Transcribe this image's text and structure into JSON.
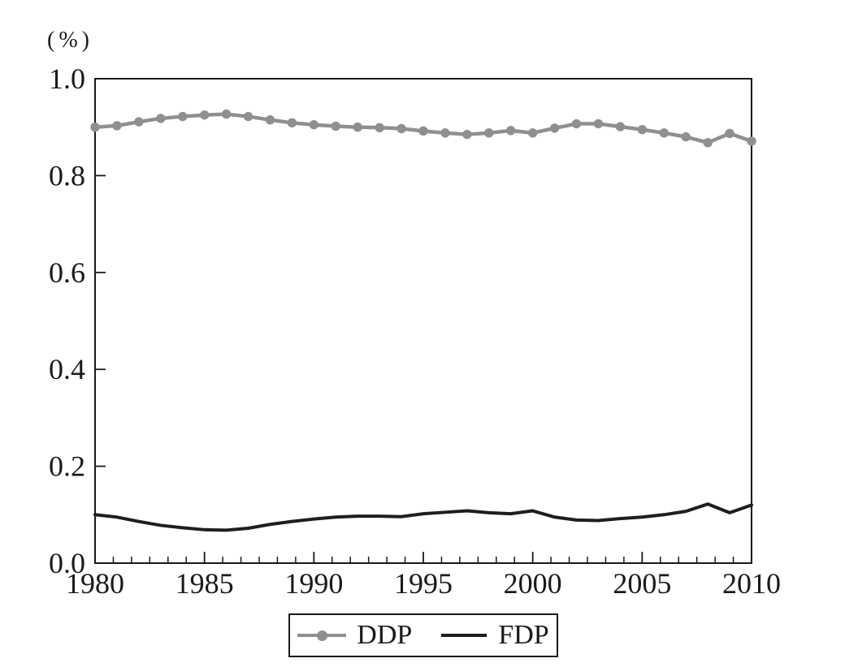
{
  "figure": {
    "unit_label": "(%)"
  },
  "chart_data": {
    "type": "line",
    "title": "",
    "xlabel": "",
    "ylabel": "(%)",
    "x": [
      1980,
      1981,
      1982,
      1983,
      1984,
      1985,
      1986,
      1987,
      1988,
      1989,
      1990,
      1991,
      1992,
      1993,
      1994,
      1995,
      1996,
      1997,
      1998,
      1999,
      2000,
      2001,
      2002,
      2003,
      2004,
      2005,
      2006,
      2007,
      2008,
      2009,
      2010
    ],
    "series": [
      {
        "name": "DDP",
        "color": "#8f8f8f",
        "marker": "circle",
        "values": [
          0.9,
          0.903,
          0.911,
          0.918,
          0.922,
          0.925,
          0.927,
          0.922,
          0.915,
          0.909,
          0.905,
          0.902,
          0.9,
          0.899,
          0.897,
          0.892,
          0.888,
          0.885,
          0.888,
          0.893,
          0.888,
          0.898,
          0.907,
          0.907,
          0.901,
          0.895,
          0.888,
          0.88,
          0.868,
          0.887,
          0.871
        ]
      },
      {
        "name": "FDP",
        "color": "#1e1e1e",
        "marker": "none",
        "values": [
          0.1,
          0.095,
          0.086,
          0.078,
          0.073,
          0.069,
          0.068,
          0.072,
          0.08,
          0.086,
          0.091,
          0.095,
          0.097,
          0.097,
          0.096,
          0.102,
          0.105,
          0.108,
          0.104,
          0.102,
          0.108,
          0.095,
          0.089,
          0.088,
          0.092,
          0.095,
          0.1,
          0.107,
          0.122,
          0.104,
          0.12
        ]
      }
    ],
    "xlim": [
      1980,
      2010
    ],
    "ylim": [
      0.0,
      1.0
    ],
    "y_tick_labels": [
      "0.0",
      "0.2",
      "0.4",
      "0.6",
      "0.8",
      "1.0"
    ],
    "x_major_tick_labels": [
      "1980",
      "1985",
      "1990",
      "1995",
      "2000",
      "2005",
      "2010"
    ],
    "x_minor_ticks_per_interval": 5,
    "grid": false,
    "legend_position": "bottom-center",
    "axis_color": "#1a1a1a"
  }
}
